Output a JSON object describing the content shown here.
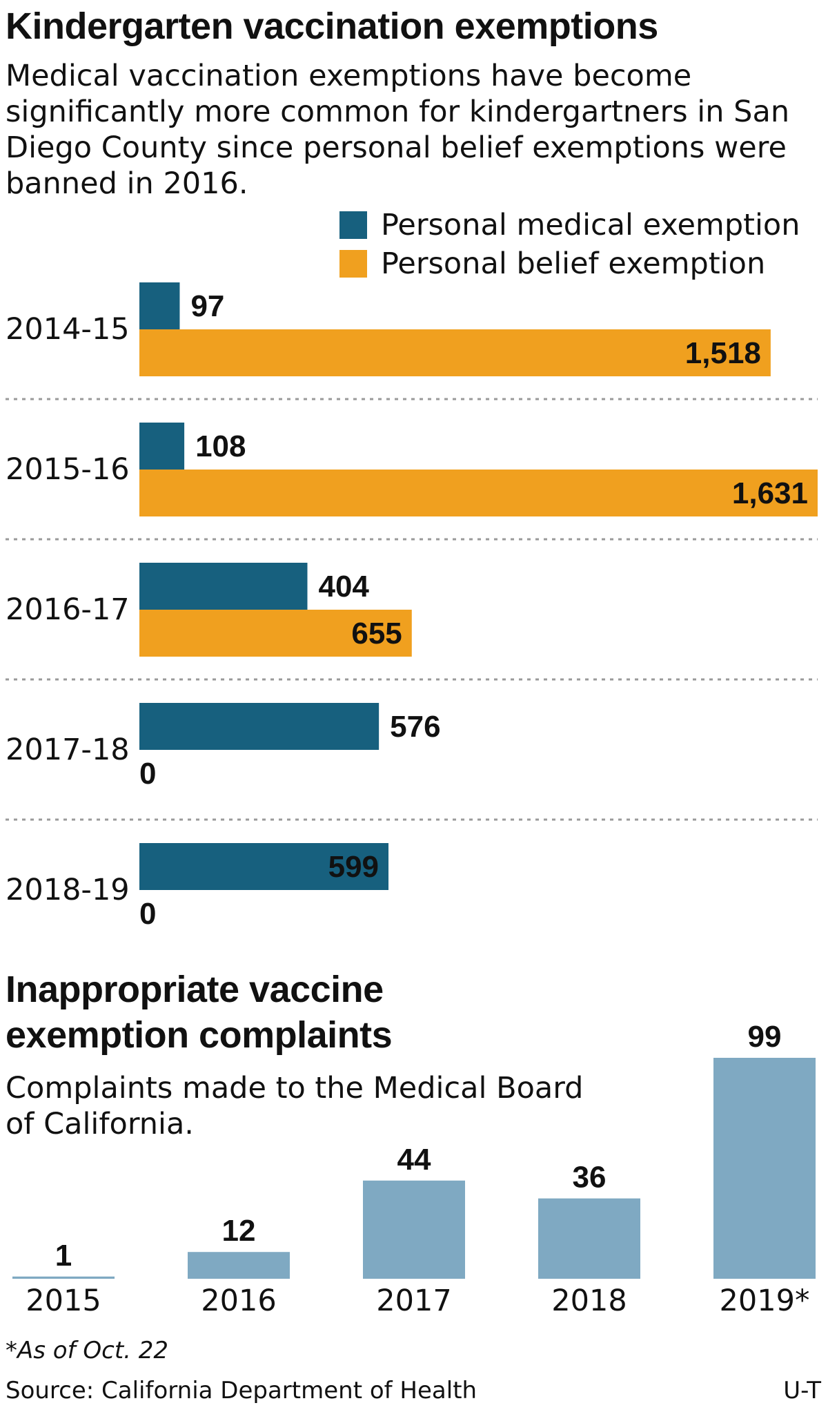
{
  "colors": {
    "medical": "#17607e",
    "belief": "#f0a01f",
    "complaints": "#7fa9c2",
    "divider": "#9a9a9a",
    "text": "#111111"
  },
  "chart_data": [
    {
      "type": "bar",
      "orientation": "horizontal",
      "title": "Kindergarten vaccination exemptions",
      "subtitle": "Medical vaccination exemptions have become significantly more common for kindergartners in San Diego County since personal belief exemptions were banned in 2016.",
      "legend_placement": "top-right",
      "categories": [
        "2014-15",
        "2015-16",
        "2016-17",
        "2017-18",
        "2018-19"
      ],
      "series": [
        {
          "name": "Personal medical exemption",
          "values": [
            97,
            108,
            404,
            576,
            599
          ],
          "labels": [
            "97",
            "108",
            "404",
            "576",
            "599"
          ]
        },
        {
          "name": "Personal belief exemption",
          "values": [
            1518,
            1631,
            655,
            0,
            0
          ],
          "labels": [
            "1,518",
            "1,631",
            "655",
            "0",
            "0"
          ]
        }
      ],
      "xlim": [
        0,
        1631
      ],
      "grid": false
    },
    {
      "type": "bar",
      "orientation": "vertical",
      "title": "Inappropriate vaccine exemption complaints",
      "subtitle": "Complaints made to the Medical Board of California.",
      "categories": [
        "2015",
        "2016",
        "2017",
        "2018",
        "2019*"
      ],
      "values": [
        1,
        12,
        44,
        36,
        99
      ],
      "ylim": [
        0,
        99
      ],
      "grid": false
    }
  ],
  "footnote": "*As of Oct. 22",
  "source": "Source: California Department of Health",
  "credit": "U-T"
}
